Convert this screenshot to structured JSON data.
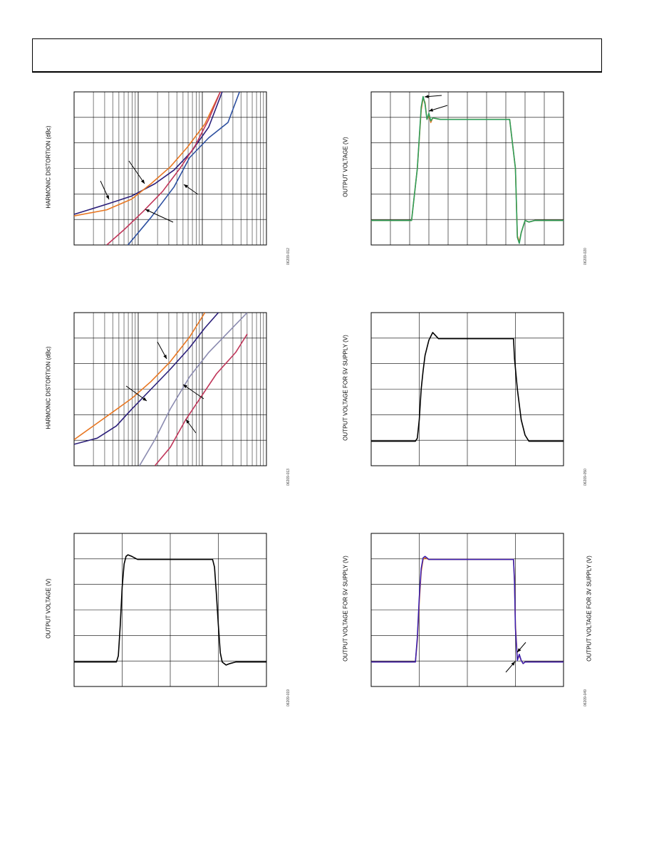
{
  "header": {
    "text": ""
  },
  "panels": [
    {
      "id": "p1",
      "ylabel": "HARMONIC DISTORTION (dBc)",
      "fig_code": "06209-012"
    },
    {
      "id": "p2",
      "ylabel": "OUTPUT VOLTAGE (V)",
      "fig_code": "06209-020"
    },
    {
      "id": "p3",
      "ylabel": "HARMONIC DISTORTION (dBc)",
      "fig_code": "06209-013"
    },
    {
      "id": "p4",
      "ylabel": "OUTPUT VOLTAGE FOR 5V SUPPLY (V)",
      "fig_code": "06209-050"
    },
    {
      "id": "p5",
      "ylabel": "OUTPUT VOLTAGE (V)",
      "fig_code": "06209-019"
    },
    {
      "id": "p6",
      "ylabel": "OUTPUT VOLTAGE FOR 5V SUPPLY (V)",
      "ylabel_right": "OUTPUT VOLTAGE FOR 3V SUPPLY (V)",
      "fig_code": "06209-049"
    }
  ],
  "chart_data": [
    {
      "type": "line",
      "panel": "p1",
      "xscale": "log",
      "grid": true,
      "xlim": [
        0,
        1
      ],
      "ylim": [
        0,
        1
      ],
      "series": [
        {
          "color": "#2b1f7a",
          "x": [
            0,
            0.18,
            0.3,
            0.42,
            0.52,
            0.61,
            0.7,
            0.77
          ],
          "y": [
            0.2,
            0.27,
            0.32,
            0.4,
            0.49,
            0.61,
            0.77,
            1.0
          ]
        },
        {
          "color": "#e87722",
          "x": [
            0,
            0.17,
            0.3,
            0.4,
            0.5,
            0.59,
            0.68,
            0.76
          ],
          "y": [
            0.19,
            0.23,
            0.3,
            0.4,
            0.51,
            0.64,
            0.79,
            1.0
          ]
        },
        {
          "color": "#c0365a",
          "x": [
            0.17,
            0.26,
            0.36,
            0.46,
            0.55,
            0.63,
            0.7,
            0.76
          ],
          "y": [
            0,
            0.1,
            0.22,
            0.35,
            0.5,
            0.65,
            0.82,
            1.0
          ]
        },
        {
          "color": "#2c4fa0",
          "x": [
            0.28,
            0.4,
            0.52,
            0.6,
            0.7,
            0.8,
            0.86
          ],
          "y": [
            0,
            0.18,
            0.38,
            0.57,
            0.7,
            0.8,
            1.0
          ]
        }
      ]
    },
    {
      "type": "line",
      "panel": "p2",
      "grid": true,
      "xlim": [
        0,
        1
      ],
      "ylim": [
        0,
        1
      ],
      "series": [
        {
          "color": "#e87722",
          "x": [
            0,
            0.21,
            0.24,
            0.26,
            0.27,
            0.28,
            0.29,
            0.3,
            0.31,
            0.32,
            0.36,
            0.72,
            0.75,
            0.76,
            0.77,
            0.78,
            0.8,
            0.82,
            0.85,
            1.0
          ],
          "y": [
            0.16,
            0.16,
            0.5,
            0.88,
            0.96,
            0.93,
            0.82,
            0.85,
            0.8,
            0.83,
            0.82,
            0.82,
            0.5,
            0.06,
            0.02,
            0.08,
            0.16,
            0.15,
            0.16,
            0.16
          ]
        },
        {
          "color": "#2e9e5b",
          "x": [
            0,
            0.21,
            0.24,
            0.26,
            0.27,
            0.28,
            0.29,
            0.3,
            0.31,
            0.32,
            0.36,
            0.72,
            0.75,
            0.76,
            0.77,
            0.78,
            0.8,
            0.82,
            0.85,
            1.0
          ],
          "y": [
            0.16,
            0.16,
            0.5,
            0.9,
            0.97,
            0.92,
            0.82,
            0.86,
            0.81,
            0.83,
            0.82,
            0.82,
            0.5,
            0.05,
            0.01,
            0.08,
            0.16,
            0.15,
            0.16,
            0.16
          ]
        }
      ]
    },
    {
      "type": "line",
      "panel": "p3",
      "xscale": "log",
      "grid": true,
      "xlim": [
        0,
        1
      ],
      "ylim": [
        0,
        1
      ],
      "series": [
        {
          "color": "#e87722",
          "x": [
            0,
            0.1,
            0.2,
            0.3,
            0.4,
            0.5,
            0.6,
            0.68
          ],
          "y": [
            0.17,
            0.26,
            0.35,
            0.44,
            0.55,
            0.68,
            0.84,
            1.0
          ]
        },
        {
          "color": "#2b1f7a",
          "x": [
            0,
            0.12,
            0.22,
            0.3,
            0.4,
            0.5,
            0.6,
            0.68,
            0.75
          ],
          "y": [
            0.14,
            0.18,
            0.26,
            0.37,
            0.5,
            0.63,
            0.77,
            0.9,
            1.0
          ]
        },
        {
          "color": "#8b8bb0",
          "x": [
            0.34,
            0.42,
            0.5,
            0.6,
            0.7,
            0.8,
            0.9
          ],
          "y": [
            0,
            0.17,
            0.37,
            0.58,
            0.74,
            0.87,
            1.0
          ]
        },
        {
          "color": "#c0365a",
          "x": [
            0.42,
            0.5,
            0.58,
            0.66,
            0.74,
            0.84,
            0.9
          ],
          "y": [
            0,
            0.12,
            0.3,
            0.45,
            0.6,
            0.74,
            0.86
          ]
        }
      ]
    },
    {
      "type": "line",
      "panel": "p4",
      "grid": true,
      "xlim": [
        0,
        1
      ],
      "ylim": [
        0,
        1
      ],
      "series": [
        {
          "color": "#000000",
          "x": [
            0,
            0.23,
            0.24,
            0.25,
            0.26,
            0.27,
            0.28,
            0.3,
            0.32,
            0.35,
            0.4,
            0.74,
            0.745,
            0.76,
            0.78,
            0.8,
            0.82,
            0.85,
            1.0
          ],
          "y": [
            0.16,
            0.16,
            0.18,
            0.3,
            0.5,
            0.62,
            0.72,
            0.82,
            0.87,
            0.83,
            0.83,
            0.83,
            0.7,
            0.5,
            0.3,
            0.2,
            0.16,
            0.16,
            0.16
          ]
        }
      ]
    },
    {
      "type": "line",
      "panel": "p5",
      "grid": true,
      "xlim": [
        0,
        1
      ],
      "ylim": [
        0,
        1
      ],
      "series": [
        {
          "color": "#000000",
          "x": [
            0,
            0.22,
            0.23,
            0.24,
            0.25,
            0.26,
            0.27,
            0.28,
            0.3,
            0.33,
            0.36,
            0.72,
            0.73,
            0.74,
            0.75,
            0.76,
            0.77,
            0.79,
            0.81,
            0.84,
            1.0
          ],
          "y": [
            0.16,
            0.16,
            0.2,
            0.4,
            0.65,
            0.8,
            0.85,
            0.86,
            0.85,
            0.83,
            0.83,
            0.83,
            0.78,
            0.6,
            0.4,
            0.22,
            0.16,
            0.14,
            0.15,
            0.16,
            0.16
          ]
        }
      ]
    },
    {
      "type": "line",
      "panel": "p6",
      "grid": true,
      "xlim": [
        0,
        1
      ],
      "ylim": [
        0,
        1
      ],
      "series": [
        {
          "color": "#e87722",
          "x": [
            0,
            0.23,
            0.24,
            0.25,
            0.26,
            0.27,
            0.28,
            0.3,
            0.33,
            0.74,
            0.745,
            0.75,
            0.76,
            0.77,
            0.78,
            0.79,
            0.8,
            0.82,
            1.0
          ],
          "y": [
            0.16,
            0.16,
            0.3,
            0.55,
            0.75,
            0.83,
            0.84,
            0.83,
            0.83,
            0.83,
            0.7,
            0.4,
            0.18,
            0.2,
            0.17,
            0.15,
            0.16,
            0.16,
            0.16
          ]
        },
        {
          "color": "#3a1fb0",
          "x": [
            0,
            0.23,
            0.24,
            0.25,
            0.26,
            0.27,
            0.28,
            0.3,
            0.33,
            0.74,
            0.745,
            0.75,
            0.76,
            0.77,
            0.78,
            0.79,
            0.8,
            0.82,
            1.0
          ],
          "y": [
            0.16,
            0.16,
            0.32,
            0.58,
            0.77,
            0.84,
            0.85,
            0.83,
            0.83,
            0.83,
            0.68,
            0.38,
            0.17,
            0.21,
            0.17,
            0.15,
            0.16,
            0.16,
            0.16
          ]
        }
      ]
    }
  ]
}
